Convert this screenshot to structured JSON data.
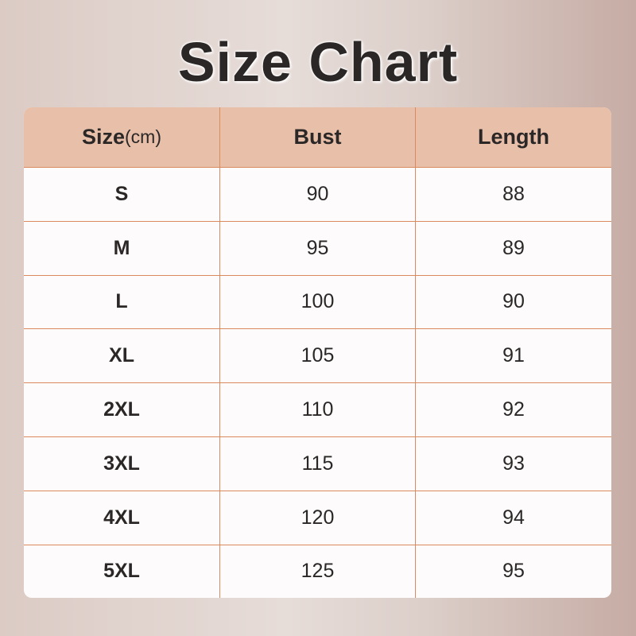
{
  "title": "Size Chart",
  "table": {
    "headers": {
      "size": "Size",
      "size_unit": "(cm)",
      "bust": "Bust",
      "length": "Length"
    },
    "rows": [
      {
        "size": "S",
        "bust": "90",
        "length": "88"
      },
      {
        "size": "M",
        "bust": "95",
        "length": "89"
      },
      {
        "size": "L",
        "bust": "100",
        "length": "90"
      },
      {
        "size": "XL",
        "bust": "105",
        "length": "91"
      },
      {
        "size": "2XL",
        "bust": "110",
        "length": "92"
      },
      {
        "size": "3XL",
        "bust": "115",
        "length": "93"
      },
      {
        "size": "4XL",
        "bust": "120",
        "length": "94"
      },
      {
        "size": "5XL",
        "bust": "125",
        "length": "95"
      }
    ]
  },
  "colors": {
    "header_bg": "#e8c0aa",
    "grid_line": "#d98a5e",
    "text": "#2b2727"
  }
}
